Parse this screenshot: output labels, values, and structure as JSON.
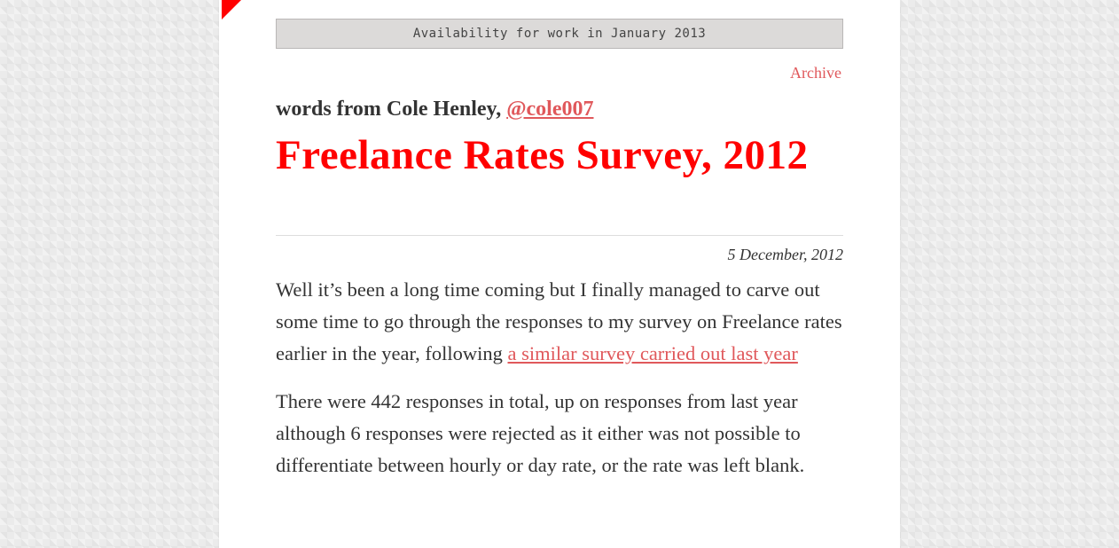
{
  "availability": {
    "text": "Availability for work in January 2013"
  },
  "nav": {
    "archive_label": "Archive"
  },
  "byline": {
    "prefix": "words from Cole Henley, ",
    "handle": "@cole007"
  },
  "article": {
    "title": "Freelance Rates Survey, 2012",
    "date": "5 December, 2012",
    "paragraph1_text": "Well it’s been a long time coming but I finally managed to carve out some time to go through the responses to my survey on Freelance rates earlier in the year, following ",
    "paragraph1_link": "a similar survey carried out last year",
    "paragraph2_text": "There were 442 responses in total, up on responses from last year although 6 responses were rejected as it either was not possible to differentiate between hourly or day rate, or the rate was left blank."
  },
  "colors": {
    "accent_red": "#ff0000",
    "link_red": "#e0585b",
    "text": "#333333",
    "availability_bg": "#dcdad9"
  }
}
